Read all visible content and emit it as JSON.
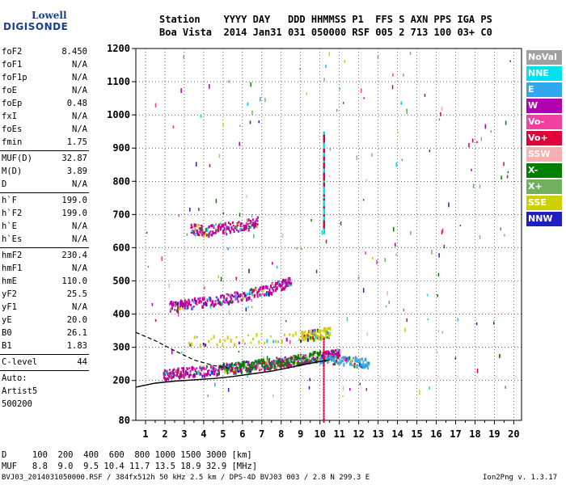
{
  "logo": {
    "line1": "Lowell",
    "line2": "DIGISONDE"
  },
  "header": {
    "line1": "Station    YYYY DAY   DDD HHMMSS P1  FFS S AXN PPS IGA PS",
    "line2": "Boa Vista  2014 Jan31 031 050000 RSF 005 2 713 100 03+ C0"
  },
  "params_group1": [
    {
      "label": "foF2",
      "value": "8.450"
    },
    {
      "label": "foF1",
      "value": "N/A"
    },
    {
      "label": "foF1p",
      "value": "N/A"
    },
    {
      "label": "foE",
      "value": "N/A"
    },
    {
      "label": "foEp",
      "value": "0.48"
    },
    {
      "label": "fxI",
      "value": "N/A"
    },
    {
      "label": "foEs",
      "value": "N/A"
    },
    {
      "label": "fmin",
      "value": "1.75"
    }
  ],
  "params_group2": [
    {
      "label": "MUF(D)",
      "value": "32.87"
    },
    {
      "label": "M(D)",
      "value": "3.89"
    },
    {
      "label": "D",
      "value": "N/A"
    }
  ],
  "params_group3": [
    {
      "label": "h`F",
      "value": "199.0"
    },
    {
      "label": "h`F2",
      "value": "199.0"
    },
    {
      "label": "h`E",
      "value": "N/A"
    },
    {
      "label": "h`Es",
      "value": "N/A"
    }
  ],
  "params_group4": [
    {
      "label": "hmF2",
      "value": "230.4"
    },
    {
      "label": "hmF1",
      "value": "N/A"
    },
    {
      "label": "hmE",
      "value": "110.0"
    },
    {
      "label": "yF2",
      "value": "25.5"
    },
    {
      "label": "yF1",
      "value": "N/A"
    },
    {
      "label": "yE",
      "value": "20.0"
    },
    {
      "label": "B0",
      "value": "26.1"
    },
    {
      "label": "B1",
      "value": "1.83"
    }
  ],
  "clevel": {
    "label": "C-level",
    "value": "44"
  },
  "auto": {
    "line1": "Auto:",
    "line2": "Artist5",
    "line3": "500200"
  },
  "legend": [
    {
      "label": "NoVal",
      "color": "#a0a0a0"
    },
    {
      "label": "NNE",
      "color": "#00e0f0"
    },
    {
      "label": "E",
      "color": "#30a8f0"
    },
    {
      "label": "W",
      "color": "#b000b0"
    },
    {
      "label": "Vo-",
      "color": "#f040a0"
    },
    {
      "label": "Vo+",
      "color": "#e0003a"
    },
    {
      "label": "SSW",
      "color": "#f8b0b0"
    },
    {
      "label": "X-",
      "color": "#008000"
    },
    {
      "label": "X+",
      "color": "#70b060"
    },
    {
      "label": "SSE",
      "color": "#d0d000"
    },
    {
      "label": "NNW",
      "color": "#2020c0"
    }
  ],
  "footer": {
    "dline": "D     100  200  400  600  800 1000 1500 3000 [km]",
    "mufline": "MUF   8.8  9.0  9.5 10.4 11.7 13.5 18.9 32.9 [MHz]",
    "file": "BVJ03_2014031050000.RSF / 384fx512h 50 kHz 2.5 km / DPS-4D BVJ03 003 / 2.8 N 299.3 E",
    "version": "Ion2Png v. 1.3.17"
  },
  "chart_data": {
    "type": "scatter",
    "xlim": [
      0.5,
      20.4
    ],
    "ylim": [
      80,
      1200
    ],
    "x_ticks": [
      "1",
      "2",
      "3",
      "4",
      "5",
      "6",
      "7",
      "8",
      "9",
      "10",
      "11",
      "12",
      "13",
      "14",
      "15",
      "16",
      "17",
      "18",
      "19",
      "20"
    ],
    "y_ticks": [
      "80",
      "200",
      "300",
      "400",
      "500",
      "600",
      "700",
      "800",
      "900",
      "1000",
      "1100",
      "1200"
    ],
    "y_tick_values": [
      80,
      200,
      300,
      400,
      500,
      600,
      700,
      800,
      900,
      1000,
      1100,
      1200
    ],
    "traces": [
      {
        "name": "O-trace F2",
        "color": "#c000a0",
        "points": [
          [
            1.9,
            220
          ],
          [
            2.5,
            225
          ],
          [
            3,
            228
          ],
          [
            4,
            232
          ],
          [
            5,
            238
          ],
          [
            6,
            245
          ],
          [
            7,
            250
          ],
          [
            8,
            258
          ],
          [
            9,
            265
          ],
          [
            10,
            272
          ],
          [
            10.5,
            278
          ],
          [
            11,
            285
          ]
        ]
      },
      {
        "name": "Second hop",
        "color": "#c000a0",
        "points": [
          [
            2.2,
            425
          ],
          [
            3,
            432
          ],
          [
            4,
            440
          ],
          [
            5,
            448
          ],
          [
            6,
            458
          ],
          [
            7,
            472
          ],
          [
            8,
            490
          ],
          [
            8.5,
            505
          ]
        ]
      },
      {
        "name": "Third hop",
        "color": "#c000a0",
        "points": [
          [
            3.3,
            660
          ],
          [
            4,
            655
          ],
          [
            5,
            662
          ],
          [
            6,
            670
          ],
          [
            6.8,
            680
          ]
        ]
      },
      {
        "name": "X-trace",
        "color": "#008000",
        "points": [
          [
            5,
            240
          ],
          [
            6,
            245
          ],
          [
            7,
            252
          ],
          [
            8,
            258
          ],
          [
            9,
            268
          ],
          [
            10,
            278
          ]
        ]
      },
      {
        "name": "Es-like",
        "color": "#d0d000",
        "points": [
          [
            3.2,
            320
          ],
          [
            9,
            335
          ],
          [
            9.5,
            340
          ],
          [
            10,
            345
          ],
          [
            10.5,
            348
          ]
        ]
      },
      {
        "name": "E-dir",
        "color": "#30a8f0",
        "points": [
          [
            10,
            265
          ],
          [
            11,
            262
          ],
          [
            12,
            258
          ],
          [
            12.5,
            252
          ]
        ]
      }
    ],
    "profile_solid": [
      [
        0.5,
        180
      ],
      [
        1.5,
        192
      ],
      [
        2.5,
        198
      ],
      [
        3.5,
        202
      ],
      [
        4.5,
        206
      ],
      [
        5.5,
        212
      ],
      [
        6.5,
        220
      ],
      [
        7.5,
        228
      ],
      [
        8.5,
        240
      ],
      [
        9.5,
        252
      ],
      [
        10.5,
        262
      ]
    ],
    "profile_dashed": [
      [
        0.5,
        345
      ],
      [
        1.5,
        320
      ],
      [
        2.5,
        290
      ],
      [
        3.5,
        262
      ],
      [
        4.5,
        245
      ],
      [
        5.5,
        235
      ]
    ],
    "vertical_spike": {
      "x": 10.2,
      "y_from": 650,
      "y_to": 950
    }
  }
}
